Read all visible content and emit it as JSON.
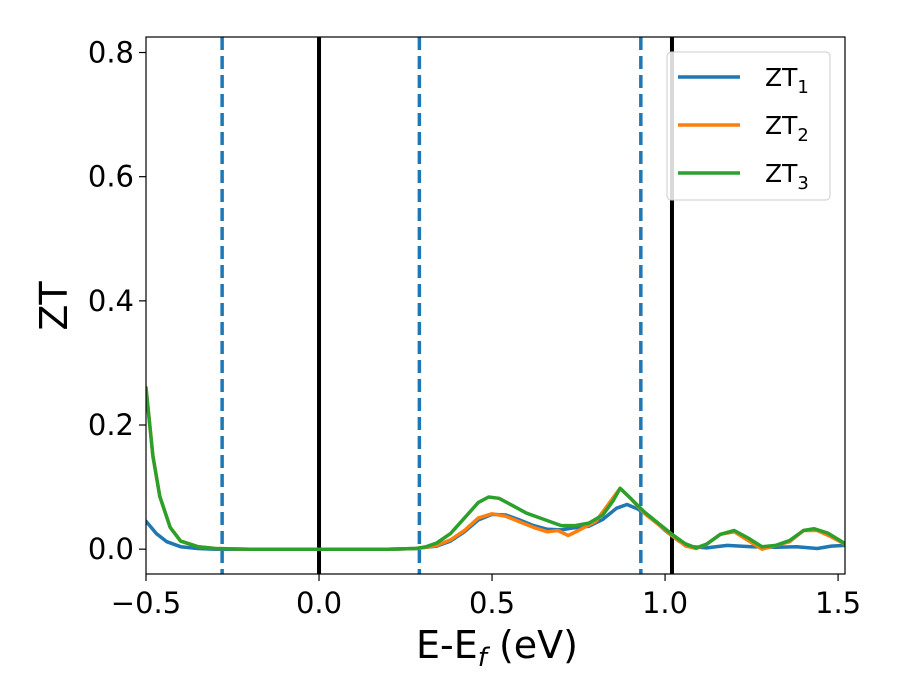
{
  "chart_data": {
    "type": "line",
    "xlabel": {
      "main": "E-E",
      "sub": "f",
      "suffix": " (eV)"
    },
    "ylabel": "ZT",
    "xlim": [
      -0.5,
      1.52
    ],
    "ylim": [
      -0.04,
      0.825
    ],
    "xticks": [
      -0.5,
      0.0,
      0.5,
      1.0,
      1.5
    ],
    "xtick_labels": [
      "−0.5",
      "0.0",
      "0.5",
      "1.0",
      "1.5"
    ],
    "yticks": [
      0.0,
      0.2,
      0.4,
      0.6,
      0.8
    ],
    "ytick_labels": [
      "0.0",
      "0.2",
      "0.4",
      "0.6",
      "0.8"
    ],
    "grid": false,
    "legend_position": "top-right",
    "vertical_lines": [
      {
        "x": -0.28,
        "style": "dashed",
        "color": "#1f77b4"
      },
      {
        "x": 0.0,
        "style": "solid",
        "color": "#000000"
      },
      {
        "x": 0.29,
        "style": "dashed",
        "color": "#1f77b4"
      },
      {
        "x": 0.93,
        "style": "dashed",
        "color": "#1f77b4"
      },
      {
        "x": 1.02,
        "style": "solid",
        "color": "#000000"
      }
    ],
    "series": [
      {
        "name": "ZT",
        "name_sub": "1",
        "color": "#1f77b4",
        "points": [
          [
            -0.5,
            0.045
          ],
          [
            -0.47,
            0.025
          ],
          [
            -0.44,
            0.012
          ],
          [
            -0.4,
            0.004
          ],
          [
            -0.35,
            0.001
          ],
          [
            -0.3,
            0.0
          ],
          [
            -0.2,
            0.0
          ],
          [
            0.0,
            0.0
          ],
          [
            0.2,
            0.0
          ],
          [
            0.28,
            0.001
          ],
          [
            0.31,
            0.003
          ],
          [
            0.34,
            0.005
          ],
          [
            0.38,
            0.013
          ],
          [
            0.42,
            0.028
          ],
          [
            0.46,
            0.047
          ],
          [
            0.5,
            0.056
          ],
          [
            0.54,
            0.055
          ],
          [
            0.58,
            0.047
          ],
          [
            0.62,
            0.038
          ],
          [
            0.66,
            0.032
          ],
          [
            0.7,
            0.031
          ],
          [
            0.73,
            0.034
          ],
          [
            0.78,
            0.037
          ],
          [
            0.82,
            0.048
          ],
          [
            0.86,
            0.066
          ],
          [
            0.89,
            0.072
          ],
          [
            0.92,
            0.065
          ],
          [
            0.96,
            0.051
          ],
          [
            1.0,
            0.03
          ],
          [
            1.04,
            0.013
          ],
          [
            1.08,
            0.004
          ],
          [
            1.12,
            0.002
          ],
          [
            1.18,
            0.006
          ],
          [
            1.25,
            0.004
          ],
          [
            1.32,
            0.003
          ],
          [
            1.38,
            0.004
          ],
          [
            1.44,
            0.001
          ],
          [
            1.48,
            0.005
          ],
          [
            1.52,
            0.006
          ]
        ]
      },
      {
        "name": "ZT",
        "name_sub": "2",
        "color": "#ff7f0e",
        "points": [
          [
            -0.5,
            0.26
          ],
          [
            -0.48,
            0.15
          ],
          [
            -0.46,
            0.085
          ],
          [
            -0.43,
            0.035
          ],
          [
            -0.4,
            0.013
          ],
          [
            -0.35,
            0.004
          ],
          [
            -0.3,
            0.001
          ],
          [
            -0.2,
            0.0
          ],
          [
            0.0,
            0.0
          ],
          [
            0.2,
            0.0
          ],
          [
            0.28,
            0.001
          ],
          [
            0.31,
            0.003
          ],
          [
            0.34,
            0.006
          ],
          [
            0.38,
            0.015
          ],
          [
            0.42,
            0.03
          ],
          [
            0.46,
            0.05
          ],
          [
            0.5,
            0.057
          ],
          [
            0.54,
            0.053
          ],
          [
            0.58,
            0.044
          ],
          [
            0.62,
            0.035
          ],
          [
            0.66,
            0.028
          ],
          [
            0.69,
            0.03
          ],
          [
            0.72,
            0.022
          ],
          [
            0.75,
            0.03
          ],
          [
            0.8,
            0.045
          ],
          [
            0.84,
            0.075
          ],
          [
            0.87,
            0.098
          ],
          [
            0.9,
            0.082
          ],
          [
            0.94,
            0.058
          ],
          [
            0.98,
            0.04
          ],
          [
            1.02,
            0.022
          ],
          [
            1.06,
            0.005
          ],
          [
            1.09,
            0.001
          ],
          [
            1.12,
            0.008
          ],
          [
            1.16,
            0.024
          ],
          [
            1.2,
            0.028
          ],
          [
            1.24,
            0.014
          ],
          [
            1.28,
            0.0
          ],
          [
            1.32,
            0.006
          ],
          [
            1.36,
            0.012
          ],
          [
            1.4,
            0.03
          ],
          [
            1.44,
            0.03
          ],
          [
            1.48,
            0.02
          ],
          [
            1.52,
            0.008
          ]
        ]
      },
      {
        "name": "ZT",
        "name_sub": "3",
        "color": "#2ca02c",
        "points": [
          [
            -0.5,
            0.26
          ],
          [
            -0.48,
            0.15
          ],
          [
            -0.46,
            0.085
          ],
          [
            -0.43,
            0.035
          ],
          [
            -0.4,
            0.013
          ],
          [
            -0.35,
            0.004
          ],
          [
            -0.3,
            0.001
          ],
          [
            -0.2,
            0.0
          ],
          [
            0.0,
            0.0
          ],
          [
            0.2,
            0.0
          ],
          [
            0.28,
            0.001
          ],
          [
            0.31,
            0.004
          ],
          [
            0.34,
            0.01
          ],
          [
            0.38,
            0.025
          ],
          [
            0.42,
            0.05
          ],
          [
            0.46,
            0.075
          ],
          [
            0.49,
            0.084
          ],
          [
            0.52,
            0.082
          ],
          [
            0.56,
            0.07
          ],
          [
            0.6,
            0.058
          ],
          [
            0.65,
            0.048
          ],
          [
            0.7,
            0.038
          ],
          [
            0.74,
            0.038
          ],
          [
            0.78,
            0.042
          ],
          [
            0.82,
            0.055
          ],
          [
            0.85,
            0.078
          ],
          [
            0.87,
            0.098
          ],
          [
            0.9,
            0.082
          ],
          [
            0.94,
            0.06
          ],
          [
            0.98,
            0.042
          ],
          [
            1.02,
            0.024
          ],
          [
            1.06,
            0.008
          ],
          [
            1.09,
            0.002
          ],
          [
            1.12,
            0.008
          ],
          [
            1.16,
            0.024
          ],
          [
            1.2,
            0.03
          ],
          [
            1.24,
            0.018
          ],
          [
            1.28,
            0.004
          ],
          [
            1.32,
            0.006
          ],
          [
            1.36,
            0.014
          ],
          [
            1.4,
            0.03
          ],
          [
            1.43,
            0.033
          ],
          [
            1.47,
            0.026
          ],
          [
            1.52,
            0.009
          ]
        ]
      }
    ]
  }
}
